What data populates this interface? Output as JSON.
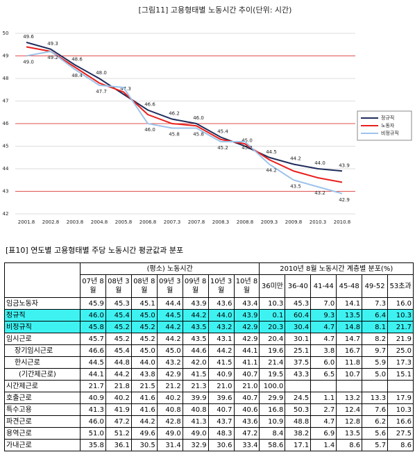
{
  "chart_data": {
    "type": "line",
    "title": "[그림11] 고용형태별 노동시간 추이(단위: 시간)",
    "categories": [
      "2001.8",
      "2002.8",
      "2003.8",
      "2004.8",
      "2005.8",
      "2006.8",
      "2007.3",
      "2007.8",
      "2008.3",
      "2008.8",
      "2009.3",
      "2009.8",
      "2010.3",
      "2010.8"
    ],
    "series": [
      {
        "name": "정규직",
        "color": "#1f2d5c",
        "values": [
          49.6,
          49.3,
          48.6,
          48.0,
          47.3,
          46.6,
          46.2,
          46.0,
          45.4,
          45.0,
          44.5,
          44.2,
          44.0,
          43.9
        ],
        "value_labels": [
          "49.6",
          "49.3",
          "48.6",
          "48.0",
          "47.3",
          "46.6",
          "46.2",
          "46.0",
          "45.4",
          "45.0",
          "44.5",
          "44.2",
          "44.0",
          "43.9"
        ]
      },
      {
        "name": "노동자",
        "color": "#e8201c",
        "values": [
          49.4,
          49.2,
          48.5,
          47.8,
          47.4,
          46.4,
          46.0,
          45.9,
          45.3,
          45.1,
          44.4,
          43.9,
          43.6,
          43.4
        ]
      },
      {
        "name": "비정규직",
        "color": "#9cc3ea",
        "values": [
          49.0,
          49.2,
          48.4,
          47.7,
          47.6,
          46.0,
          45.8,
          45.8,
          45.2,
          45.2,
          44.2,
          43.5,
          43.2,
          42.9
        ],
        "value_labels": [
          "49.0",
          "49.2",
          "48.4",
          "47.7",
          null,
          "46.0",
          "45.8",
          "45.8",
          "45.2",
          "45.2",
          "44.2",
          "43.5",
          "43.2",
          "42.9"
        ]
      }
    ],
    "ylim": [
      42,
      50
    ],
    "yticks": [
      42,
      43,
      44,
      45,
      46,
      47,
      48,
      49,
      50
    ],
    "grid": true
  },
  "table": {
    "title": "[표10] 연도별 고용형태별 주당 노동시간 평균값과 분포",
    "group_headers": [
      "(평소) 노동시간",
      "2010년 8월 노동시간 계층별 분포(%)"
    ],
    "columns": [
      "07년 8월",
      "08년 3월",
      "08년 8월",
      "09년 3월",
      "09년 8월",
      "10년 3월",
      "10년 8월",
      "36미만",
      "36-40",
      "41-44",
      "45-48",
      "49-52",
      "53초과"
    ],
    "rows": [
      {
        "label": "임금노동자",
        "cells": [
          "45.9",
          "45.3",
          "45.1",
          "44.4",
          "43.9",
          "43.6",
          "43.4",
          "10.3",
          "45.3",
          "7.0",
          "14.1",
          "7.3",
          "16.0"
        ]
      },
      {
        "label": "정규직",
        "highlight": true,
        "cells": [
          "46.0",
          "45.4",
          "45.0",
          "44.5",
          "44.2",
          "44.0",
          "43.9",
          "0.1",
          "60.4",
          "9.3",
          "13.5",
          "6.4",
          "10.3"
        ]
      },
      {
        "label": "비정규직",
        "highlight": true,
        "cells": [
          "45.8",
          "45.2",
          "45.2",
          "44.2",
          "43.5",
          "43.2",
          "42.9",
          "20.3",
          "30.4",
          "4.7",
          "14.8",
          "8.1",
          "21.7"
        ]
      },
      {
        "label": "임시근로",
        "cells": [
          "45.7",
          "45.2",
          "45.2",
          "44.2",
          "43.5",
          "43.1",
          "42.9",
          "20.4",
          "30.1",
          "4.7",
          "14.7",
          "8.2",
          "21.9"
        ]
      },
      {
        "label": "장기임시근로",
        "cells": [
          "46.6",
          "45.4",
          "45.0",
          "45.0",
          "44.6",
          "44.2",
          "44.1",
          "19.6",
          "25.1",
          "3.8",
          "16.7",
          "9.7",
          "25.0"
        ]
      },
      {
        "label": "한시근로",
        "cells": [
          "44.5",
          "44.8",
          "44.0",
          "43.2",
          "42.0",
          "41.5",
          "41.1",
          "21.4",
          "37.5",
          "6.0",
          "11.8",
          "5.9",
          "17.3"
        ]
      },
      {
        "label": "(기간제근로)",
        "cells": [
          "44.1",
          "44.2",
          "43.8",
          "42.9",
          "41.5",
          "40.9",
          "40.7",
          "19.5",
          "43.3",
          "6.5",
          "10.7",
          "5.0",
          "15.1"
        ]
      },
      {
        "label": "시간제근로",
        "cells": [
          "21.7",
          "21.8",
          "21.5",
          "21.2",
          "21.3",
          "21.0",
          "21.0",
          "100.0",
          null,
          null,
          null,
          null,
          null
        ]
      },
      {
        "label": "호출근로",
        "cells": [
          "40.9",
          "40.2",
          "41.6",
          "40.2",
          "39.9",
          "39.6",
          "40.7",
          "29.9",
          "24.5",
          "1.1",
          "13.2",
          "13.3",
          "17.9"
        ]
      },
      {
        "label": "특수고용",
        "cells": [
          "41.3",
          "41.9",
          "41.6",
          "40.8",
          "40.8",
          "40.7",
          "40.6",
          "16.8",
          "50.3",
          "2.7",
          "12.4",
          "7.6",
          "10.3"
        ]
      },
      {
        "label": "파견근로",
        "cells": [
          "46.0",
          "47.2",
          "44.2",
          "42.8",
          "41.3",
          "43.7",
          "43.6",
          "10.9",
          "48.8",
          "4.7",
          "12.8",
          "6.2",
          "16.6"
        ]
      },
      {
        "label": "용역근로",
        "cells": [
          "51.0",
          "51.2",
          "49.6",
          "49.0",
          "49.0",
          "48.3",
          "47.2",
          "8.4",
          "38.2",
          "6.9",
          "13.5",
          "5.6",
          "27.5"
        ]
      },
      {
        "label": "가내근로",
        "cells": [
          "35.8",
          "36.1",
          "30.5",
          "31.4",
          "32.9",
          "30.6",
          "33.4",
          "58.6",
          "17.1",
          "1.4",
          "8.6",
          "5.7",
          "8.6"
        ]
      }
    ]
  }
}
